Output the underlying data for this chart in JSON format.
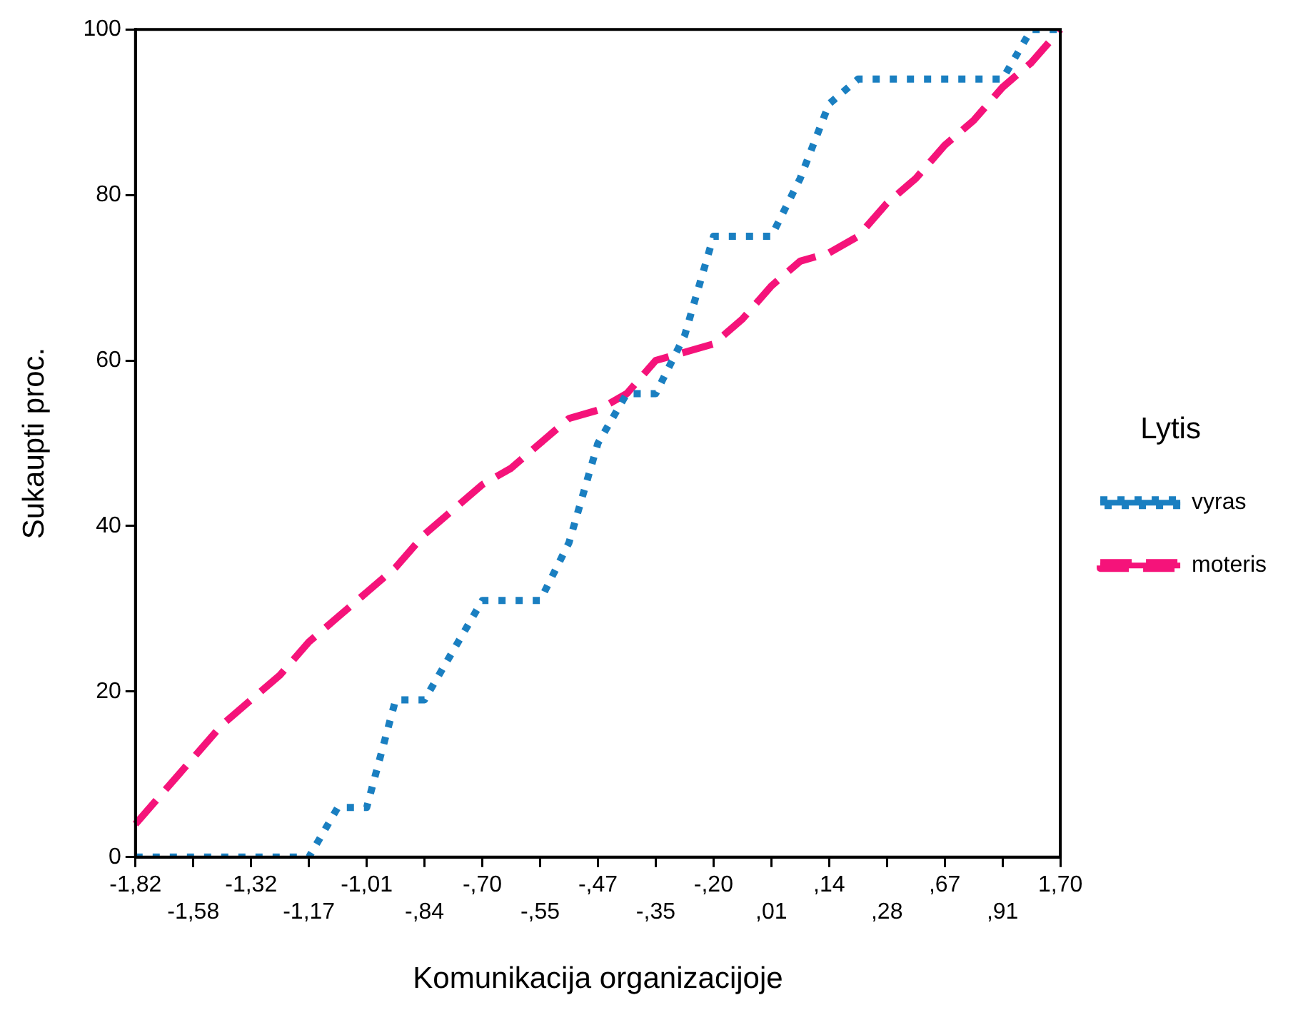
{
  "chart_data": {
    "type": "line",
    "xlabel": "Komunikacija organizacijoje",
    "ylabel": "Sukaupti proc.",
    "legend_title": "Lytis",
    "categories": [
      "-1,82",
      null,
      "-1,58",
      null,
      "-1,32",
      null,
      "-1,17",
      null,
      "-1,01",
      null,
      "-,84",
      null,
      "-,70",
      null,
      "-,55",
      null,
      "-,47",
      null,
      "-,35",
      null,
      "-,20",
      null,
      ",01",
      null,
      ",14",
      null,
      ",28",
      null,
      ",67",
      null,
      ",91",
      null,
      "1,70"
    ],
    "series": [
      {
        "name": "vyras",
        "color": "#1a7fc1",
        "line_style": "dotted",
        "values": [
          0,
          0,
          0,
          0,
          0,
          0,
          0,
          6,
          6,
          19,
          19,
          25,
          31,
          31,
          31,
          38,
          50,
          56,
          56,
          63,
          75,
          75,
          75,
          82,
          91,
          94,
          94,
          94,
          94,
          94,
          94,
          100,
          100
        ]
      },
      {
        "name": "moteris",
        "color": "#f5137a",
        "line_style": "dashed",
        "values": [
          4,
          8,
          12,
          16,
          19,
          22,
          26,
          29,
          32,
          35,
          39,
          42,
          45,
          47,
          50,
          53,
          54,
          56,
          60,
          61,
          62,
          65,
          69,
          72,
          73,
          75,
          79,
          82,
          86,
          89,
          93,
          96,
          100
        ]
      }
    ],
    "ylim": [
      0,
      100
    ],
    "yticks": [
      0,
      20,
      40,
      60,
      80,
      100
    ],
    "grid": false,
    "legend": "right",
    "marker": "none"
  }
}
